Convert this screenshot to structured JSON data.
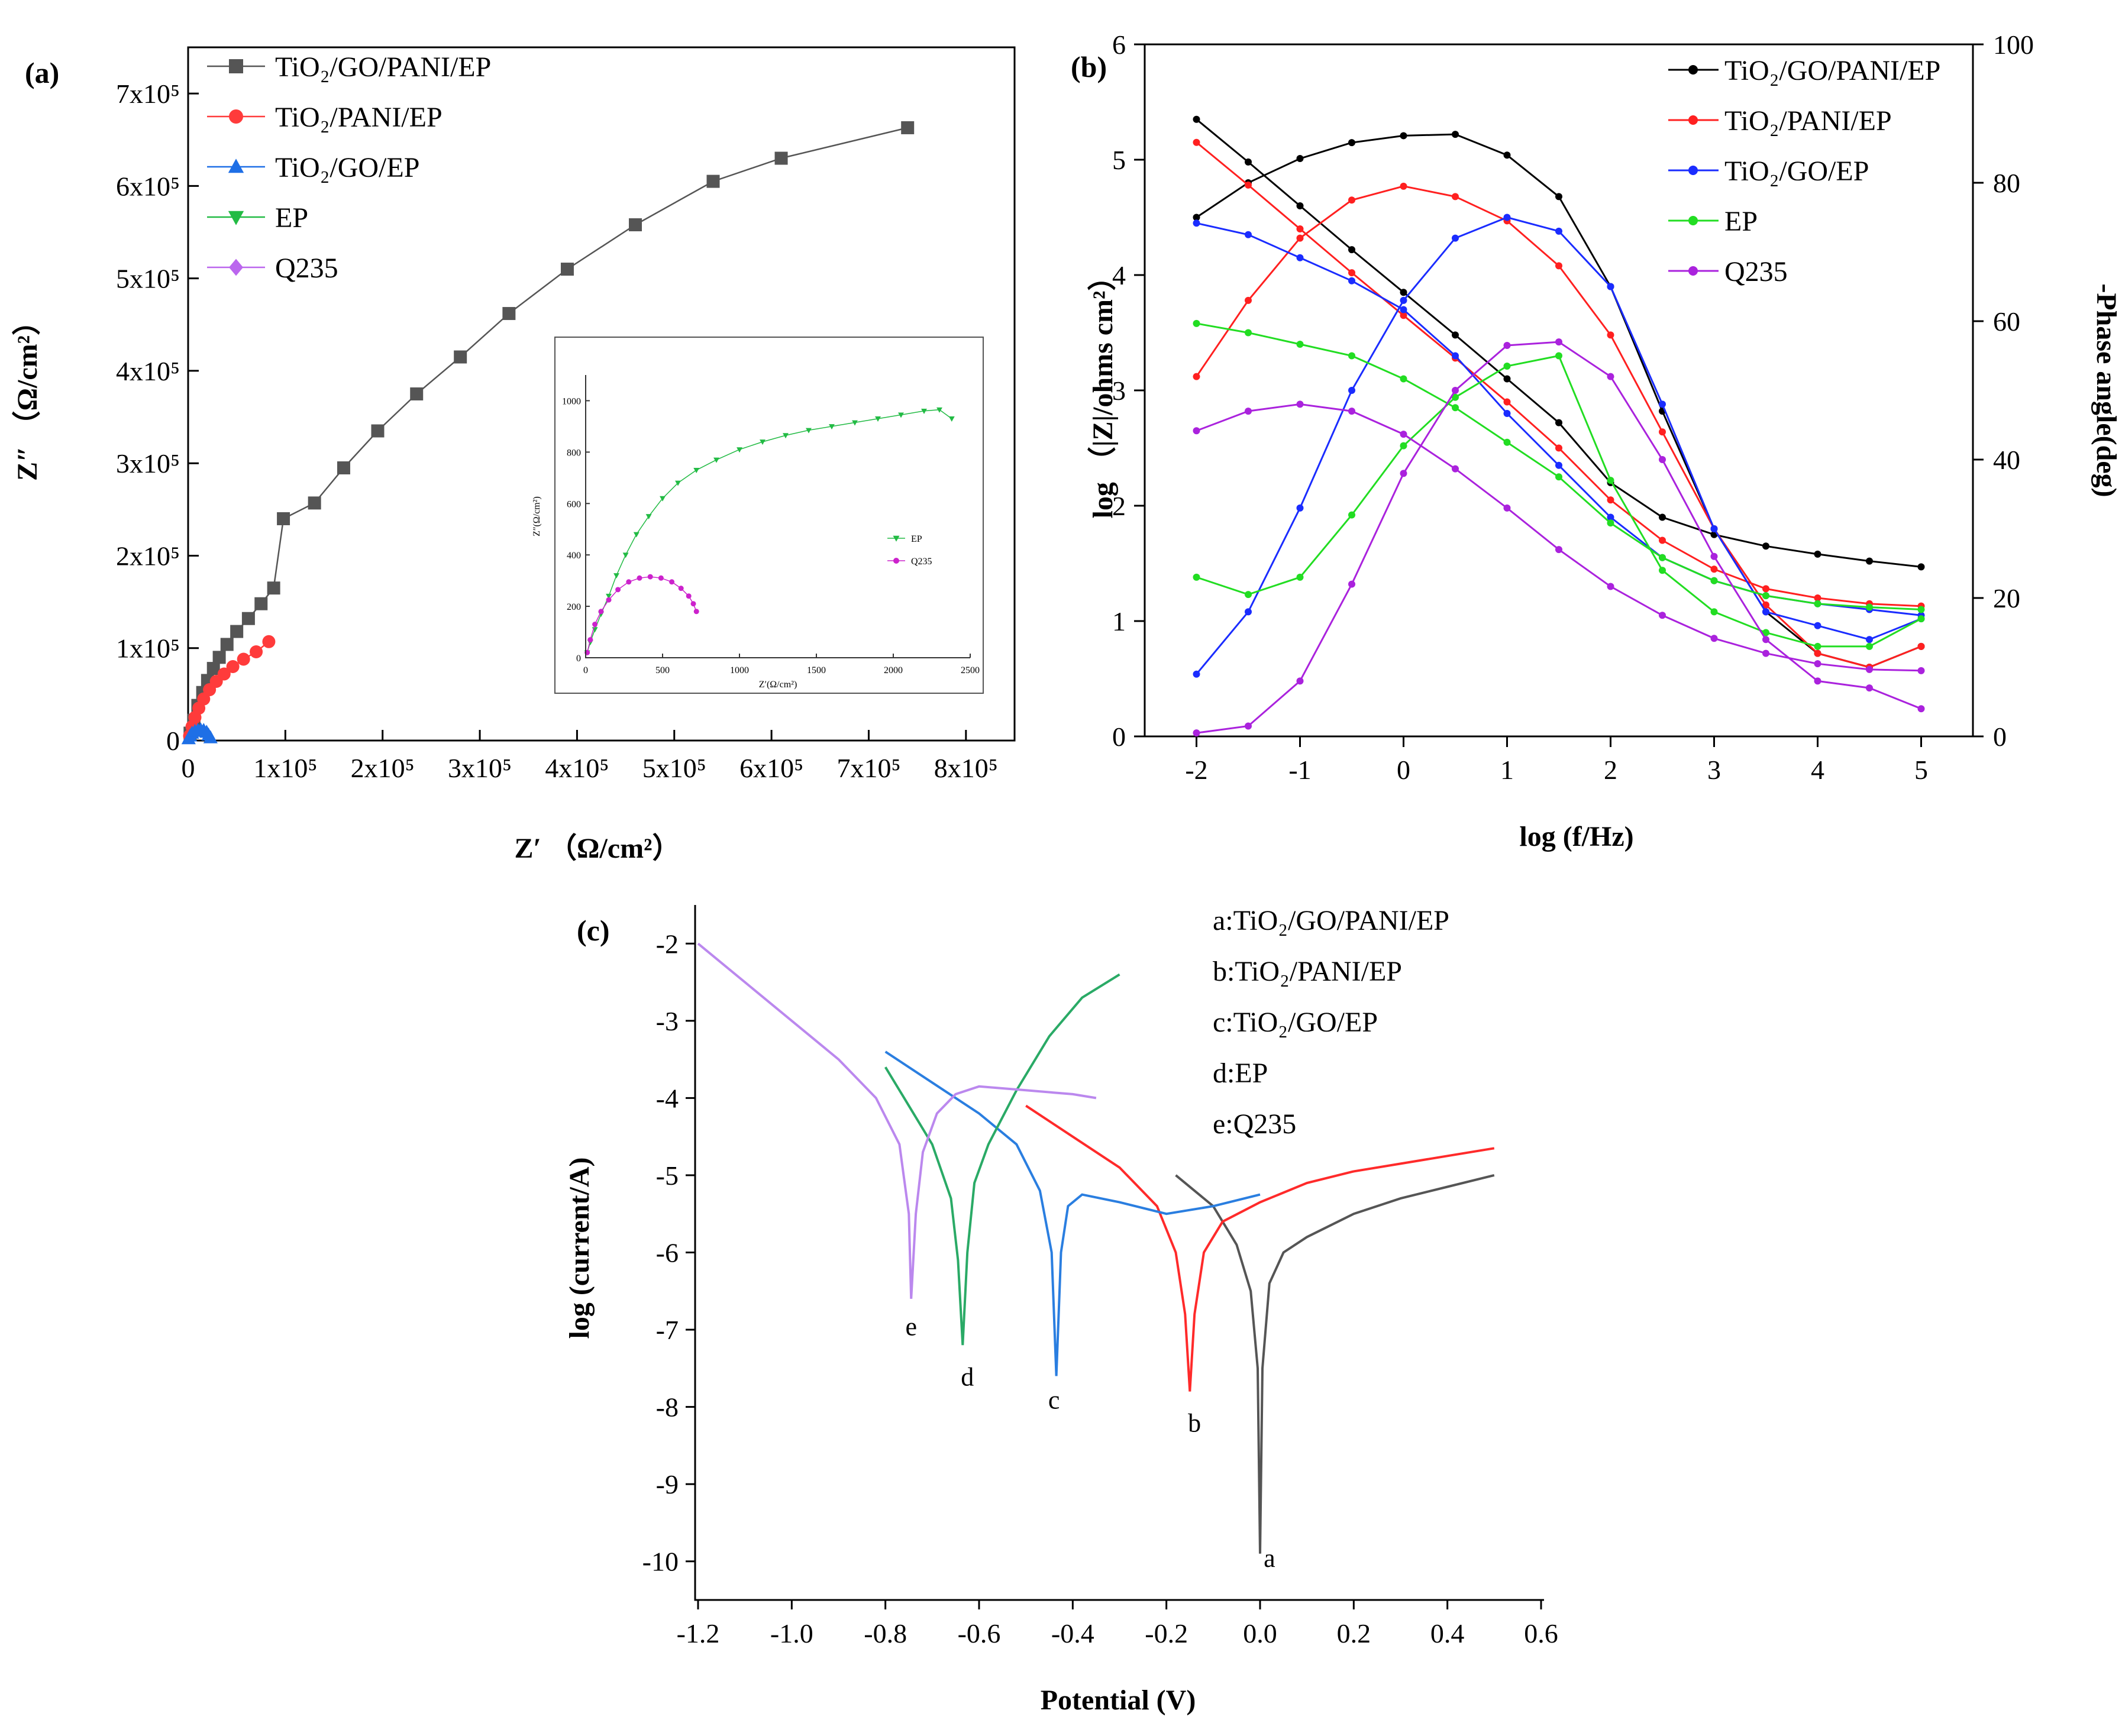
{
  "chart_data": [
    {
      "id": "a",
      "panel_label": "(a)",
      "type": "scatter",
      "xlabel": "Z′ （Ω/cm²）",
      "ylabel": "Z″ （Ω/cm²）",
      "xlim": [
        0,
        850000
      ],
      "ylim": [
        0,
        750000
      ],
      "x_ticks": [
        "0",
        "1x10⁵",
        "2x10⁵",
        "3x10⁵",
        "4x10⁵",
        "5x10⁵",
        "6x10⁵",
        "7x10⁵",
        "8x10⁵"
      ],
      "y_ticks": [
        "0",
        "1x10⁵",
        "2x10⁵",
        "3x10⁵",
        "4x10⁵",
        "5x10⁵",
        "6x10⁵",
        "7x10⁵"
      ],
      "x_tick_values": [
        0,
        100000,
        200000,
        300000,
        400000,
        500000,
        600000,
        700000,
        800000
      ],
      "y_tick_values": [
        0,
        100000,
        200000,
        300000,
        400000,
        500000,
        600000,
        700000
      ],
      "legend": "top-left",
      "series": [
        {
          "name": "TiO₂/GO/PANI/EP",
          "color": "#555555",
          "marker": "square",
          "x": [
            2000,
            6000,
            10000,
            15000,
            20000,
            26000,
            32000,
            40000,
            50000,
            62000,
            75000,
            88000,
            98000,
            130000,
            160000,
            195000,
            235000,
            280000,
            330000,
            390000,
            460000,
            540000,
            610000,
            740000
          ],
          "y": [
            8000,
            22000,
            38000,
            52000,
            65000,
            78000,
            90000,
            104000,
            118000,
            132000,
            148000,
            165000,
            240000,
            257000,
            295000,
            335000,
            375000,
            415000,
            462000,
            510000,
            558000,
            605000,
            630000,
            663000
          ]
        },
        {
          "name": "TiO₂/PANI/EP",
          "color": "#ff3b3b",
          "marker": "circle",
          "x": [
            1500,
            4000,
            7000,
            11000,
            16000,
            22000,
            29000,
            37000,
            46000,
            57000,
            70000,
            83000
          ],
          "y": [
            5000,
            15000,
            25000,
            35000,
            45000,
            55000,
            64000,
            72000,
            80000,
            88000,
            96000,
            107000
          ]
        },
        {
          "name": "TiO₂/GO/EP",
          "color": "#1e6fe6",
          "marker": "triangle-up",
          "x": [
            500,
            2000,
            4000,
            7000,
            10000,
            13000,
            16000,
            19000,
            21000,
            23000
          ],
          "y": [
            2000,
            5000,
            8000,
            10000,
            11000,
            11500,
            11000,
            9000,
            6000,
            3000
          ]
        },
        {
          "name": "EP",
          "color": "#22bb44",
          "marker": "triangle-down",
          "x": [],
          "y": []
        },
        {
          "name": "Q235",
          "color": "#bb66ee",
          "marker": "diamond",
          "x": [],
          "y": []
        }
      ]
    },
    {
      "id": "a-inset",
      "type": "scatter",
      "xlabel": "Z′(Ω/cm²)",
      "ylabel": "Z″(Ω/cm²)",
      "xlim": [
        0,
        2500
      ],
      "ylim": [
        0,
        1100
      ],
      "x_ticks": [
        "0",
        "500",
        "1000",
        "1500",
        "2000",
        "2500"
      ],
      "y_ticks": [
        "0",
        "200",
        "400",
        "600",
        "800",
        "1000"
      ],
      "x_tick_values": [
        0,
        500,
        1000,
        1500,
        2000,
        2500
      ],
      "y_tick_values": [
        0,
        200,
        400,
        600,
        800,
        1000
      ],
      "legend": "right",
      "series": [
        {
          "name": "EP",
          "color": "#22bb44",
          "marker": "triangle-down",
          "x": [
            10,
            30,
            60,
            100,
            150,
            200,
            260,
            330,
            410,
            500,
            600,
            720,
            850,
            1000,
            1150,
            1300,
            1450,
            1600,
            1750,
            1900,
            2050,
            2200,
            2300,
            2380
          ],
          "y": [
            20,
            60,
            110,
            170,
            240,
            320,
            400,
            480,
            550,
            620,
            680,
            730,
            770,
            810,
            840,
            865,
            885,
            900,
            915,
            930,
            945,
            960,
            965,
            930
          ]
        },
        {
          "name": "Q235",
          "color": "#cc22cc",
          "marker": "circle",
          "x": [
            10,
            30,
            60,
            100,
            150,
            210,
            280,
            350,
            420,
            490,
            560,
            620,
            670,
            700,
            720
          ],
          "y": [
            20,
            70,
            130,
            180,
            225,
            265,
            295,
            310,
            315,
            310,
            295,
            270,
            240,
            210,
            180
          ]
        }
      ]
    },
    {
      "id": "b",
      "panel_label": "(b)",
      "type": "line",
      "xlabel": "log (f/Hz)",
      "ylabel": "log （|Z|/ohms cm²）",
      "y2label": "-Phase angle(deg)",
      "xlim": [
        -2.5,
        5.5
      ],
      "ylim": [
        0,
        6
      ],
      "y2lim": [
        0,
        100
      ],
      "x_ticks": [
        "-2",
        "-1",
        "0",
        "1",
        "2",
        "3",
        "4",
        "5"
      ],
      "x_tick_values": [
        -2,
        -1,
        0,
        1,
        2,
        3,
        4,
        5
      ],
      "y_ticks": [
        "0",
        "1",
        "2",
        "3",
        "4",
        "5",
        "6"
      ],
      "y_tick_values": [
        0,
        1,
        2,
        3,
        4,
        5,
        6
      ],
      "y2_ticks": [
        "0",
        "20",
        "40",
        "60",
        "80",
        "100"
      ],
      "y2_tick_values": [
        0,
        20,
        40,
        60,
        80,
        100
      ],
      "legend": "top-right",
      "x": [
        -2,
        -1.5,
        -1,
        -0.5,
        0,
        0.5,
        1,
        1.5,
        2,
        2.5,
        3,
        3.5,
        4,
        4.5,
        5
      ],
      "series": [
        {
          "name": "TiO₂/GO/PANI/EP",
          "color": "#000000",
          "logZ": [
            5.35,
            4.98,
            4.6,
            4.22,
            3.85,
            3.48,
            3.1,
            2.72,
            2.2,
            1.9,
            1.75,
            1.65,
            1.58,
            1.52,
            1.47
          ],
          "phase": [
            75,
            80,
            83.5,
            85.8,
            86.8,
            87,
            84,
            78,
            65,
            47,
            30,
            18,
            12,
            10,
            13
          ]
        },
        {
          "name": "TiO₂/PANI/EP",
          "color": "#ff2020",
          "logZ": [
            5.15,
            4.78,
            4.4,
            4.02,
            3.65,
            3.28,
            2.9,
            2.5,
            2.05,
            1.7,
            1.45,
            1.28,
            1.2,
            1.15,
            1.13
          ],
          "phase": [
            52,
            63,
            72,
            77.5,
            79.5,
            78,
            74.5,
            68,
            58,
            44,
            30,
            19,
            12,
            10,
            13
          ]
        },
        {
          "name": "TiO₂/GO/EP",
          "color": "#1a2cff",
          "logZ": [
            4.45,
            4.35,
            4.15,
            3.95,
            3.7,
            3.3,
            2.8,
            2.35,
            1.9,
            1.55,
            1.35,
            1.22,
            1.15,
            1.1,
            1.05
          ],
          "phase": [
            9,
            18,
            33,
            50,
            63,
            72,
            75,
            73,
            65,
            48,
            30,
            18,
            16,
            14,
            17
          ]
        },
        {
          "name": "EP",
          "color": "#22dd22",
          "logZ": [
            3.58,
            3.5,
            3.4,
            3.3,
            3.1,
            2.85,
            2.55,
            2.25,
            1.85,
            1.55,
            1.35,
            1.22,
            1.15,
            1.12,
            1.1
          ],
          "phase": [
            23,
            20.5,
            23,
            32,
            42,
            49,
            53.5,
            55,
            37,
            24,
            18,
            15,
            13,
            13,
            17
          ]
        },
        {
          "name": "Q235",
          "color": "#aa22dd",
          "logZ": [
            2.65,
            2.82,
            2.88,
            2.82,
            2.62,
            2.32,
            1.98,
            1.62,
            1.3,
            1.05,
            0.85,
            0.72,
            0.63,
            0.58,
            0.57
          ],
          "phase": [
            0.5,
            1.5,
            8,
            22,
            38,
            50,
            56.5,
            57,
            52,
            40,
            26,
            14,
            8,
            7,
            4
          ]
        }
      ]
    },
    {
      "id": "c",
      "panel_label": "(c)",
      "type": "line",
      "xlabel": "Potential (V)",
      "ylabel": "log (current/A)",
      "xlim": [
        -1.2,
        0.6
      ],
      "ylim": [
        -10.5,
        -1.5
      ],
      "x_ticks": [
        "-1.2",
        "-1.0",
        "-0.8",
        "-0.6",
        "-0.4",
        "-0.2",
        "0.0",
        "0.2",
        "0.4",
        "0.6"
      ],
      "x_tick_values": [
        -1.2,
        -1.0,
        -0.8,
        -0.6,
        -0.4,
        -0.2,
        0.0,
        0.2,
        0.4,
        0.6
      ],
      "y_ticks": [
        "-2",
        "-3",
        "-4",
        "-5",
        "-6",
        "-7",
        "-8",
        "-9",
        "-10"
      ],
      "y_tick_values": [
        -2,
        -3,
        -4,
        -5,
        -6,
        -7,
        -8,
        -9,
        -10
      ],
      "legend": "top-right",
      "legend_entries": [
        {
          "prefix": "a:",
          "name": "TiO₂/GO/PANI/EP"
        },
        {
          "prefix": "b:",
          "name": "TiO₂/PANI/EP"
        },
        {
          "prefix": "c:",
          "name": "TiO₂/GO/EP"
        },
        {
          "prefix": "d:",
          "name": "EP"
        },
        {
          "prefix": "e:",
          "name": "Q235"
        }
      ],
      "series": [
        {
          "name": "a",
          "color": "#555555",
          "x": [
            -0.18,
            -0.1,
            -0.05,
            -0.02,
            -0.005,
            0.0,
            0.005,
            0.02,
            0.05,
            0.1,
            0.2,
            0.3,
            0.4,
            0.5
          ],
          "y": [
            -5.0,
            -5.4,
            -5.9,
            -6.5,
            -7.5,
            -9.9,
            -7.5,
            -6.4,
            -6.0,
            -5.8,
            -5.5,
            -5.3,
            -5.15,
            -5.0
          ]
        },
        {
          "name": "b",
          "color": "#ff2a2a",
          "x": [
            -0.5,
            -0.4,
            -0.3,
            -0.22,
            -0.18,
            -0.16,
            -0.15,
            -0.14,
            -0.12,
            -0.08,
            0.0,
            0.1,
            0.2,
            0.3,
            0.4,
            0.5
          ],
          "y": [
            -4.1,
            -4.5,
            -4.9,
            -5.4,
            -6.0,
            -6.8,
            -7.8,
            -6.8,
            -6.0,
            -5.6,
            -5.35,
            -5.1,
            -4.95,
            -4.85,
            -4.75,
            -4.65
          ]
        },
        {
          "name": "c",
          "color": "#2a7ee0",
          "x": [
            -0.8,
            -0.7,
            -0.6,
            -0.52,
            -0.47,
            -0.445,
            -0.435,
            -0.425,
            -0.41,
            -0.38,
            -0.3,
            -0.2,
            -0.1,
            0.0
          ],
          "y": [
            -3.4,
            -3.8,
            -4.2,
            -4.6,
            -5.2,
            -6.0,
            -7.6,
            -6.0,
            -5.4,
            -5.25,
            -5.35,
            -5.5,
            -5.4,
            -5.25
          ]
        },
        {
          "name": "d",
          "color": "#2aaa66",
          "x": [
            -0.8,
            -0.75,
            -0.7,
            -0.66,
            -0.645,
            -0.635,
            -0.625,
            -0.61,
            -0.58,
            -0.52,
            -0.45,
            -0.38,
            -0.3
          ],
          "y": [
            -3.6,
            -4.1,
            -4.6,
            -5.3,
            -6.1,
            -7.2,
            -6.0,
            -5.1,
            -4.6,
            -3.9,
            -3.2,
            -2.7,
            -2.4
          ]
        },
        {
          "name": "e",
          "color": "#bb88ee",
          "x": [
            -1.2,
            -1.1,
            -1.0,
            -0.9,
            -0.82,
            -0.77,
            -0.75,
            -0.745,
            -0.735,
            -0.72,
            -0.69,
            -0.65,
            -0.6,
            -0.5,
            -0.4,
            -0.35
          ],
          "y": [
            -2.0,
            -2.5,
            -3.0,
            -3.5,
            -4.0,
            -4.6,
            -5.5,
            -6.6,
            -5.5,
            -4.7,
            -4.2,
            -3.95,
            -3.85,
            -3.9,
            -3.95,
            -4.0
          ]
        }
      ],
      "curve_labels": [
        {
          "text": "a",
          "x": 0.02,
          "y": -9.95
        },
        {
          "text": "b",
          "x": -0.14,
          "y": -8.2
        },
        {
          "text": "c",
          "x": -0.44,
          "y": -7.9
        },
        {
          "text": "d",
          "x": -0.625,
          "y": -7.6
        },
        {
          "text": "e",
          "x": -0.745,
          "y": -6.95
        }
      ]
    }
  ]
}
